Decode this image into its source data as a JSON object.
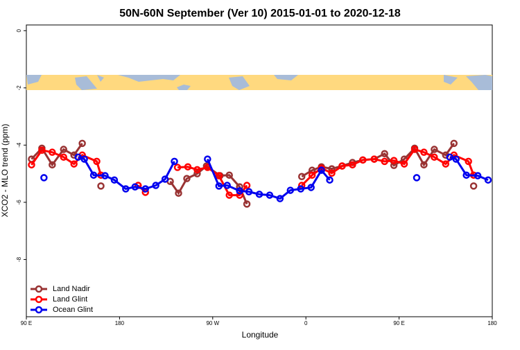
{
  "chart_data": {
    "type": "line",
    "title": "50N-60N September (Ver 10)   2015-01-01 to 2020-12-18",
    "x_label": "Longitude",
    "y_label": "XCO2 - MLO trend (ppm)",
    "xlim": [
      90,
      540
    ],
    "ylim": [
      -10,
      0.2
    ],
    "xticks": [
      {
        "value": 90,
        "label": "90 E"
      },
      180,
      {
        "value": 270,
        "label": "90 W"
      },
      {
        "value": 360,
        "label": "0"
      },
      {
        "value": 450,
        "label": "90 E"
      },
      {
        "value": 540,
        "label": "180"
      }
    ],
    "yticks": [
      0,
      -2,
      -4,
      -6,
      -8
    ],
    "legend": "bottom-left",
    "series": [
      {
        "name": "Land Nadir",
        "color": "#993333",
        "x": [
          95,
          105,
          115,
          126,
          136,
          144,
          null,
          162,
          null,
          229,
          237,
          245,
          255,
          264,
          277,
          286,
          296,
          303,
          null,
          356,
          366,
          375,
          385,
          395,
          405,
          415,
          426,
          436,
          445,
          455,
          465,
          474,
          484,
          495,
          503,
          null,
          522
        ],
        "values": [
          -4.49,
          -4.11,
          -4.69,
          -4.15,
          -4.35,
          -3.94,
          null,
          -5.43,
          null,
          -5.27,
          -5.68,
          -5.17,
          -5.0,
          -4.73,
          -5.07,
          -5.05,
          -5.46,
          -6.06,
          null,
          -5.1,
          -4.88,
          -4.76,
          -4.83,
          -4.73,
          -4.61,
          -4.52,
          -4.49,
          -4.3,
          -4.71,
          -4.49,
          -4.11,
          -4.69,
          -4.15,
          -4.35,
          -3.94,
          null,
          -5.43
        ]
      },
      {
        "name": "Land Glint",
        "color": "#ff0000",
        "x": [
          95,
          105,
          115,
          126,
          136,
          144,
          158,
          162,
          null,
          198,
          205,
          null,
          236,
          246,
          255,
          265,
          276,
          286,
          296,
          303,
          null,
          356,
          366,
          375,
          385,
          395,
          405,
          415,
          426,
          436,
          445,
          455,
          465,
          474,
          484,
          495,
          503,
          517,
          522
        ],
        "values": [
          -4.69,
          -4.18,
          -4.25,
          -4.42,
          -4.66,
          -4.35,
          -4.57,
          -5.05,
          null,
          -5.41,
          -5.65,
          null,
          -4.78,
          -4.76,
          -4.86,
          -4.78,
          -5.07,
          -5.75,
          -5.75,
          -5.41,
          null,
          -5.41,
          -5.05,
          -4.81,
          -4.98,
          -4.73,
          -4.69,
          -4.52,
          -4.49,
          -4.57,
          -4.54,
          -4.66,
          -4.15,
          -4.25,
          -4.42,
          -4.66,
          -4.35,
          -4.57,
          -5.05
        ]
      },
      {
        "name": "Ocean Glint",
        "color": "#0000ee",
        "x": [
          107,
          null,
          140,
          146,
          155,
          166,
          175,
          186,
          195,
          205,
          215,
          224,
          233,
          null,
          265,
          276,
          284,
          296,
          305,
          315,
          325,
          335,
          345,
          355,
          365,
          375,
          383,
          null,
          467,
          null,
          499,
          505,
          515,
          526,
          536
        ],
        "values": [
          -5.14,
          null,
          -4.42,
          -4.49,
          -5.05,
          -5.07,
          -5.22,
          -5.53,
          -5.46,
          -5.53,
          -5.41,
          -5.19,
          -4.57,
          null,
          -4.49,
          -5.43,
          -5.41,
          -5.6,
          -5.63,
          -5.72,
          -5.75,
          -5.87,
          -5.58,
          -5.53,
          -5.48,
          -4.88,
          -5.22,
          null,
          -5.14,
          null,
          -4.42,
          -4.49,
          -5.05,
          -5.07,
          -5.22
        ]
      }
    ]
  }
}
